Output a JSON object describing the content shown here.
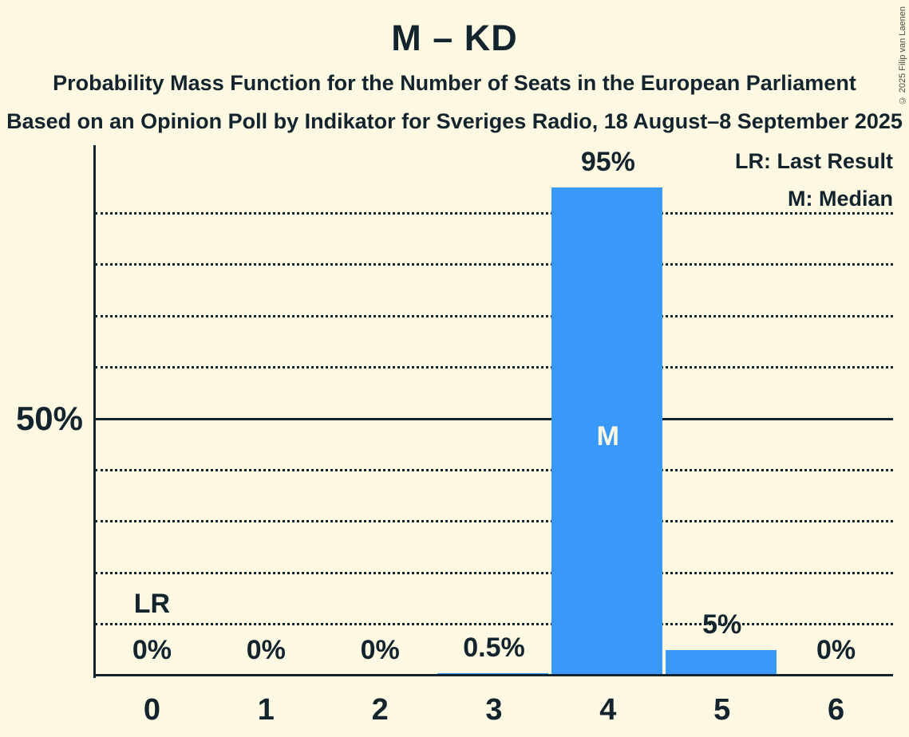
{
  "chart_data": {
    "type": "bar",
    "title": "M – KD",
    "subtitle": "Probability Mass Function for the Number of Seats in the European Parliament",
    "source_line": "Based on an Opinion Poll by Indikator for Sveriges Radio, 18 August–8 September 2025",
    "categories": [
      "0",
      "1",
      "2",
      "3",
      "4",
      "5",
      "6"
    ],
    "values": [
      0,
      0,
      0,
      0.5,
      95,
      5,
      0
    ],
    "bar_labels": [
      "0%",
      "0%",
      "0%",
      "0.5%",
      "95%",
      "5%",
      "0%"
    ],
    "ylim": [
      0,
      100
    ],
    "ytick_values": [
      50
    ],
    "ytick_labels": [
      "50%"
    ],
    "gridline_percents": [
      10,
      20,
      30,
      40,
      50,
      60,
      70,
      80,
      90
    ],
    "solid_gridline_percent": 50,
    "grid": "dotted-horizontal",
    "legend_position": "top-right",
    "legend": {
      "lr": "LR: Last Result",
      "m": "M: Median"
    },
    "annotations": {
      "last_result_label": "LR",
      "last_result_category": "0",
      "median_label": "M",
      "median_category": "4"
    },
    "copyright": "© 2025 Filip van Laenen",
    "colors": {
      "background": "#fcf8e2",
      "bar": "#3899f9",
      "text": "#13242e",
      "bar_inner_text": "#fcf8e2"
    }
  }
}
